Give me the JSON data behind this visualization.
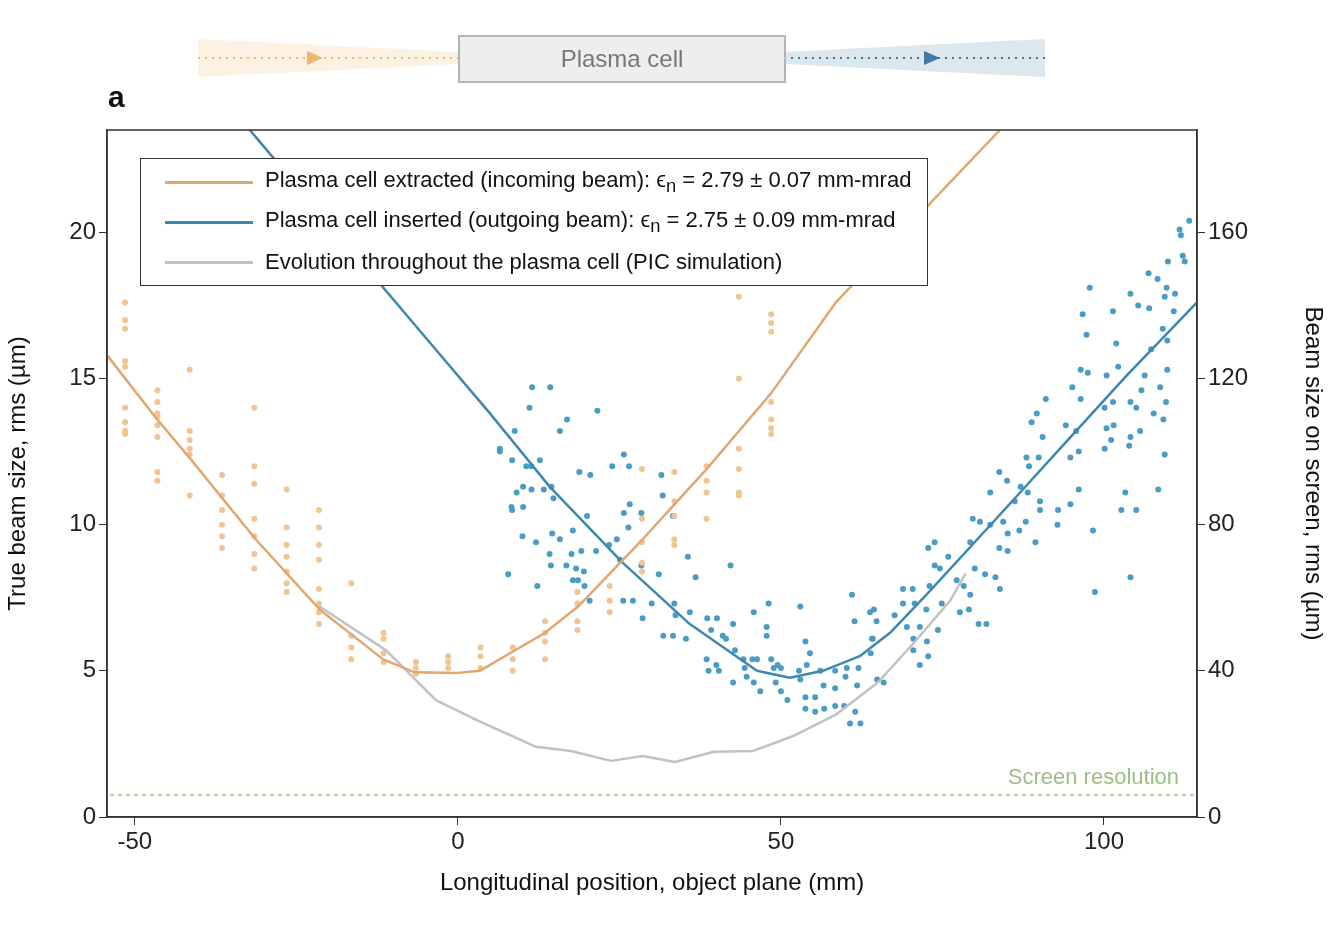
{
  "chart_data": {
    "type": "scatter",
    "xlabel": "Longitudinal position, object plane (mm)",
    "ylabel": "True beam size, rms (µm)",
    "y2label": "Beam size on screen, rms (µm)",
    "xlim": [
      -54.3,
      114.4
    ],
    "xticks": [
      -50,
      0,
      50,
      100
    ],
    "ylim": [
      0,
      23.5
    ],
    "yticks": [
      0,
      5,
      10,
      15,
      20
    ],
    "y2lim": [
      0,
      188
    ],
    "y2ticks": [
      0,
      40,
      80,
      120,
      160
    ],
    "legend": "top left",
    "annotations": [
      "a",
      "Plasma cell"
    ],
    "ref_lines": [
      {
        "axis": "y",
        "value": 0.75,
        "label": "Screen resolution",
        "color": "#b9d6a4",
        "line_style": "dotted"
      }
    ],
    "series": [
      {
        "name": "Plasma cell extracted (incoming beam): ϵ$_{n}$ = 2.79 ± 0.07 mm-mrad",
        "type": "line",
        "marker": "none",
        "color": "#e0a770",
        "x": [
          -54.3,
          -46.9,
          -41.2,
          -31.3,
          -21.4,
          -11.6,
          -6.7,
          0,
          3.4,
          13.5,
          18.6,
          28.6,
          38.5,
          48.5,
          58.5,
          83.9
        ],
        "values": [
          15.8,
          13.7,
          12.2,
          9.5,
          7.1,
          5.4,
          4.95,
          4.93,
          5.0,
          6.3,
          7.2,
          9.5,
          11.9,
          14.5,
          17.6,
          23.5
        ]
      },
      {
        "name": "Plasma cell inserted (outgoing beam): ϵ$_{n}$ = 2.75 ± 0.09 mm-mrad",
        "type": "line",
        "marker": "none",
        "color": "#3d88ae",
        "x": [
          -32.2,
          -5,
          5,
          14.2,
          25.5,
          35.9,
          46.3,
          51.4,
          56.5,
          62.2,
          66.9,
          72.5,
          82.9,
          93.2,
          103.5,
          114.4
        ],
        "values": [
          23.5,
          16.4,
          13.8,
          11.3,
          8.7,
          6.6,
          5.0,
          4.76,
          5.0,
          5.5,
          6.3,
          7.6,
          10.1,
          12.6,
          15.1,
          17.6
        ]
      },
      {
        "name": "Evolution throughout the plasma cell (PIC simulation)",
        "type": "line",
        "marker": "none",
        "color": "#c2c2c2",
        "x": [
          -21.4,
          -11.1,
          -3.4,
          3.1,
          12.1,
          17.5,
          23.7,
          28.6,
          33.6,
          39.6,
          45.7,
          51.9,
          58.5,
          65.0,
          70.6,
          76.2,
          78.5
        ],
        "values": [
          7.2,
          5.7,
          4.0,
          3.3,
          2.4,
          2.26,
          1.92,
          2.09,
          1.88,
          2.23,
          2.26,
          2.77,
          3.5,
          4.6,
          5.96,
          7.4,
          8.3
        ]
      },
      {
        "type": "scatter",
        "marker": "circle",
        "color": "#f1c491",
        "x": [
          -51.5,
          -51.5,
          -51.5,
          -51.5,
          -51.5,
          -51.5,
          -51.5,
          -51.5,
          -51.5,
          -46.5,
          -46.5,
          -46.5,
          -46.5,
          -46.5,
          -46.5,
          -46.5,
          -46.5,
          -41.5,
          -41.5,
          -41.5,
          -41.5,
          -41.5,
          -41.5,
          -36.5,
          -36.5,
          -36.5,
          -36.5,
          -36.5,
          -36.5,
          -31.5,
          -31.5,
          -31.5,
          -31.5,
          -31.5,
          -31.5,
          -31.5,
          -26.5,
          -26.5,
          -26.5,
          -26.5,
          -26.5,
          -26.5,
          -26.5,
          -21.5,
          -21.5,
          -21.5,
          -21.5,
          -21.5,
          -21.5,
          -21.5,
          -21.5,
          -16.5,
          -16.5,
          -16.5,
          -16.5,
          -11.5,
          -11.5,
          -11.5,
          -11.5,
          -6.5,
          -6.5,
          -6.5,
          -1.5,
          -1.5,
          -1.5,
          3.5,
          3.5,
          3.5,
          8.5,
          8.5,
          8.5,
          13.5,
          13.5,
          13.5,
          13.5,
          18.5,
          18.5,
          18.5,
          18.5,
          23.5,
          23.5,
          23.5,
          28.5,
          28.5,
          28.5,
          28.5,
          28.5,
          33.5,
          33.5,
          33.5,
          33.5,
          33.5,
          38.5,
          38.5,
          38.5,
          38.5,
          43.5,
          43.5,
          43.5,
          43.5,
          43.5,
          43.5,
          48.5,
          48.5,
          48.5,
          48.5,
          48.5,
          48.5,
          48.5
        ],
        "values": [
          17.6,
          17.0,
          16.7,
          15.6,
          15.4,
          14.0,
          13.5,
          13.2,
          13.1,
          14.6,
          14.2,
          13.8,
          13.7,
          13.4,
          13.0,
          11.8,
          11.5,
          15.3,
          13.2,
          12.9,
          12.6,
          12.4,
          11.0,
          11.7,
          11.0,
          10.5,
          10.0,
          9.6,
          9.2,
          14.0,
          12.0,
          11.4,
          10.2,
          9.6,
          9.0,
          8.5,
          11.2,
          9.9,
          9.3,
          8.9,
          8.4,
          8.0,
          7.7,
          10.5,
          9.9,
          9.3,
          8.8,
          7.8,
          7.3,
          7.0,
          6.6,
          8.0,
          6.2,
          5.8,
          5.4,
          6.3,
          6.1,
          5.6,
          5.3,
          5.3,
          5.1,
          4.9,
          5.5,
          5.3,
          5.1,
          5.8,
          5.5,
          5.1,
          5.8,
          5.4,
          5.0,
          6.7,
          6.3,
          6.0,
          5.4,
          7.7,
          7.3,
          6.7,
          6.4,
          7.9,
          7.4,
          7.0,
          11.9,
          10.2,
          9.4,
          8.7,
          8.4,
          11.8,
          10.8,
          10.3,
          9.5,
          9.3,
          12.0,
          11.5,
          11.1,
          10.2,
          17.8,
          15.0,
          12.6,
          11.9,
          11.1,
          11.0,
          17.2,
          16.9,
          16.6,
          14.2,
          13.6,
          13.3,
          13.1
        ]
      },
      {
        "type": "scatter",
        "marker": "circle",
        "color": "#4a9cc5",
        "x": [
          11.5,
          14.3,
          11.1,
          16.9,
          15.8,
          21.6,
          8.8,
          6.5,
          8.4,
          12.7,
          10.6,
          11.4,
          18.8,
          20.5,
          23.9,
          25.7,
          26.5,
          31.5,
          31.7,
          10.1,
          13.3,
          11.4,
          9.1,
          8.3,
          10.1,
          14.8,
          14.5,
          26.6,
          25.7,
          28.4,
          33.3,
          10.0,
          12.1,
          14.6,
          15.8,
          17.8,
          20.0,
          21.4,
          23.4,
          24.6,
          26.4,
          14.2,
          14.4,
          16.8,
          17.6,
          19.1,
          18.3,
          19.5,
          17.8,
          18.6,
          19.6,
          7.8,
          12.3,
          25.1,
          28.4,
          31.1,
          35.6,
          36.8,
          42.2,
          20.4,
          25.6,
          27.1,
          30.0,
          28.6,
          33.5,
          33.7,
          35.9,
          38.6,
          40.1,
          42.6,
          45.8,
          48.1,
          53.0,
          61.0,
          63.8,
          61.4,
          31.8,
          33.3,
          35.3,
          39.2,
          41.0,
          41.5,
          47.8,
          47.8,
          53.8,
          64.1,
          38.5,
          40.0,
          38.8,
          40.4,
          42.9,
          44.2,
          46.3,
          44.4,
          44.7,
          45.6,
          48.5,
          48.9,
          49.5,
          50.0,
          54.5,
          54.0,
          52.8,
          56.1,
          58.4,
          60.2,
          62.0,
          63.9,
          42.6,
          45.8,
          46.8,
          49.2,
          50.0,
          51.0,
          53.0,
          53.8,
          55.3,
          56.6,
          58.4,
          60.0,
          61.8,
          64.9,
          65.9,
          53.8,
          55.3,
          56.7,
          58.4,
          59.8,
          61.5,
          60.7,
          62.3,
          6.5,
          8.4,
          113.2,
          111.7,
          111.9,
          112.2,
          112.5,
          109.9,
          106.9,
          108.3,
          104.1,
          109.7,
          111.0,
          109.4,
          105.3,
          107.0,
          101.4,
          97.8,
          96.7,
          97.3,
          110.8,
          109.1,
          109.8,
          101.9,
          107.3,
          102.2,
          96.4,
          97.5,
          100.4,
          106.3,
          109.8,
          95.1,
          96.4,
          91.0,
          100.1,
          101.4,
          104.1,
          105.8,
          108.7,
          109.6,
          107.7,
          109.2,
          105.0,
          89.6,
          88.8,
          90.5,
          94.1,
          95.7,
          100.4,
          101.5,
          100.1,
          101.1,
          104.1,
          103.9,
          105.6,
          109.4,
          94.8,
          96.1,
          88.0,
          89.9,
          88.4,
          83.8,
          85.0,
          87.1,
          88.2,
          82.4,
          86.2,
          90.1,
          90.1,
          92.9,
          94.8,
          96.1,
          108.4,
          103.3,
          102.7,
          105.0,
          79.7,
          80.8,
          82.4,
          84.4,
          87.9,
          86.9,
          85.1,
          92.8,
          98.3,
          89.4,
          83.8,
          85.1,
          79.3,
          72.8,
          73.8,
          73.8,
          75.9,
          74.6,
          80.0,
          81.6,
          83.2,
          83.9,
          77.2,
          78.3,
          79.3,
          98.6,
          104.1,
          68.9,
          70.4,
          73.0,
          74.9,
          68.9,
          70.7,
          72.5,
          77.7,
          79.1,
          80.6,
          81.8,
          64.4,
          67.6,
          64.8,
          69.5,
          71.5,
          74.3,
          64.2,
          70.5,
          72.6,
          70.5,
          72.8,
          71.5
        ],
        "values": [
          14.7,
          14.7,
          14.0,
          13.6,
          13.2,
          13.9,
          13.2,
          12.5,
          12.2,
          12.2,
          12.0,
          12.0,
          11.8,
          11.7,
          12.0,
          12.4,
          12.0,
          11.7,
          11.0,
          11.3,
          11.2,
          11.2,
          11.1,
          10.6,
          10.6,
          10.9,
          11.3,
          10.7,
          10.4,
          10.4,
          10.3,
          9.6,
          9.4,
          9.7,
          9.5,
          9.8,
          10.3,
          9.1,
          9.3,
          9.5,
          9.9,
          9.0,
          8.6,
          8.6,
          9.0,
          9.1,
          8.5,
          8.4,
          8.1,
          8.1,
          7.9,
          8.3,
          7.9,
          8.8,
          8.6,
          8.3,
          8.9,
          8.2,
          8.6,
          7.4,
          7.4,
          7.4,
          7.3,
          6.8,
          7.3,
          6.9,
          7.0,
          6.8,
          6.8,
          6.6,
          7.0,
          7.3,
          7.2,
          7.6,
          7.0,
          6.7,
          6.2,
          6.2,
          6.1,
          6.4,
          6.2,
          6.1,
          6.5,
          6.2,
          6.0,
          6.1,
          5.4,
          5.2,
          5.0,
          5.0,
          5.7,
          5.4,
          5.4,
          5.1,
          4.8,
          5.4,
          5.4,
          5.1,
          5.2,
          5.1,
          5.6,
          5.2,
          5.0,
          5.0,
          5.0,
          5.1,
          5.1,
          5.6,
          4.6,
          4.6,
          4.3,
          4.6,
          4.3,
          4.0,
          4.7,
          4.1,
          4.1,
          4.5,
          4.4,
          4.8,
          4.5,
          4.7,
          4.6,
          3.7,
          3.6,
          3.7,
          3.8,
          3.8,
          3.6,
          3.2,
          3.2,
          12.6,
          10.5,
          20.4,
          20.1,
          19.9,
          19.2,
          19.0,
          19.0,
          18.6,
          18.4,
          17.9,
          18.1,
          17.9,
          17.8,
          17.5,
          17.4,
          17.3,
          18.1,
          17.2,
          16.5,
          17.3,
          16.7,
          16.3,
          16.2,
          16.0,
          15.4,
          15.3,
          15.2,
          15.1,
          15.1,
          15.3,
          14.7,
          14.3,
          14.3,
          14.0,
          14.2,
          14.2,
          14.6,
          14.7,
          14.2,
          13.8,
          13.6,
          14.0,
          13.8,
          13.5,
          13.0,
          13.4,
          13.2,
          13.3,
          13.4,
          12.6,
          12.9,
          13.0,
          12.7,
          13.2,
          12.4,
          12.3,
          12.5,
          12.3,
          12.3,
          12.0,
          11.8,
          11.5,
          11.3,
          11.1,
          11.1,
          10.8,
          10.8,
          10.5,
          10.5,
          10.7,
          11.2,
          11.2,
          11.1,
          10.5,
          10.5,
          10.2,
          10.1,
          10.0,
          10.1,
          10.1,
          9.8,
          9.7,
          10.0,
          9.8,
          9.4,
          9.2,
          9.1,
          9.4,
          9.2,
          9.4,
          8.6,
          8.9,
          8.5,
          8.5,
          8.3,
          8.2,
          7.8,
          8.1,
          7.9,
          7.6,
          7.7,
          8.2,
          7.8,
          7.8,
          7.9,
          7.3,
          7.3,
          7.3,
          7.1,
          7.0,
          7.1,
          6.6,
          6.6,
          7.1,
          6.9,
          6.7,
          6.5,
          6.5,
          6.4,
          6.1,
          6.1,
          6.0,
          5.7,
          5.5,
          5.2
        ]
      }
    ]
  }
}
